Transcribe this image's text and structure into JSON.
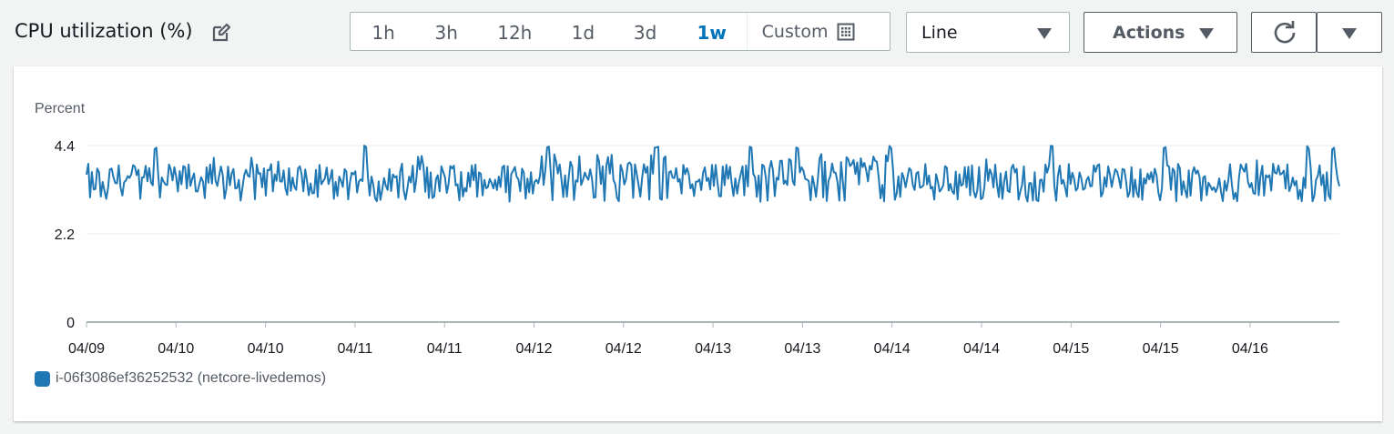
{
  "header": {
    "title": "CPU utilization (%)",
    "time_ranges": [
      {
        "label": "1h",
        "active": false
      },
      {
        "label": "3h",
        "active": false
      },
      {
        "label": "12h",
        "active": false
      },
      {
        "label": "1d",
        "active": false
      },
      {
        "label": "3d",
        "active": false
      },
      {
        "label": "1w",
        "active": true
      }
    ],
    "custom_label": "Custom",
    "chart_type_select": "Line",
    "actions_label": "Actions"
  },
  "colors": {
    "series": "#1f77b4",
    "accent": "#0073bb"
  },
  "chart_data": {
    "type": "line",
    "ylabel": "Percent",
    "ylim": [
      0,
      4.4
    ],
    "yticks": [
      0,
      2.2,
      4.4
    ],
    "xtick_labels": [
      "04/09",
      "04/10",
      "04/10",
      "04/11",
      "04/11",
      "04/12",
      "04/12",
      "04/13",
      "04/13",
      "04/14",
      "04/14",
      "04/15",
      "04/15",
      "04/16"
    ],
    "grid": true,
    "legend_position": "bottom-left",
    "series": [
      {
        "name": "i-06f3086ef36252532 (netcore-livedemos)",
        "color": "#1f77b4",
        "baseline_low": 3.0,
        "typical_high": 3.9,
        "peak": 4.4,
        "points_count": 700
      }
    ]
  }
}
